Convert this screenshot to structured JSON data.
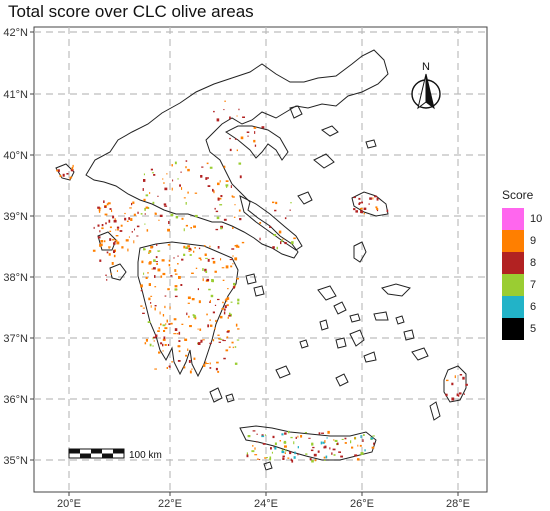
{
  "title": "Total score over CLC olive areas",
  "axes": {
    "x_ticks": [
      "20°E",
      "22°E",
      "24°E",
      "26°E",
      "28°E"
    ],
    "y_ticks": [
      "42°N",
      "41°N",
      "40°N",
      "39°N",
      "38°N",
      "37°N",
      "36°N",
      "35°N"
    ]
  },
  "north_arrow": {
    "label": "N",
    "icon": "north-arrow-icon"
  },
  "scale_bar": {
    "label": "100 km"
  },
  "legend": {
    "title": "Score",
    "items": [
      {
        "label": "10",
        "color": "#ff66ee"
      },
      {
        "label": "9",
        "color": "#ff7f00"
      },
      {
        "label": "8",
        "color": "#b22222"
      },
      {
        "label": "7",
        "color": "#9acd32"
      },
      {
        "label": "6",
        "color": "#22b3c8"
      },
      {
        "label": "5",
        "color": "#000000"
      }
    ]
  },
  "colors": {
    "grid": "#bdbdbd",
    "outline": "#222222",
    "frame": "#444444"
  }
}
